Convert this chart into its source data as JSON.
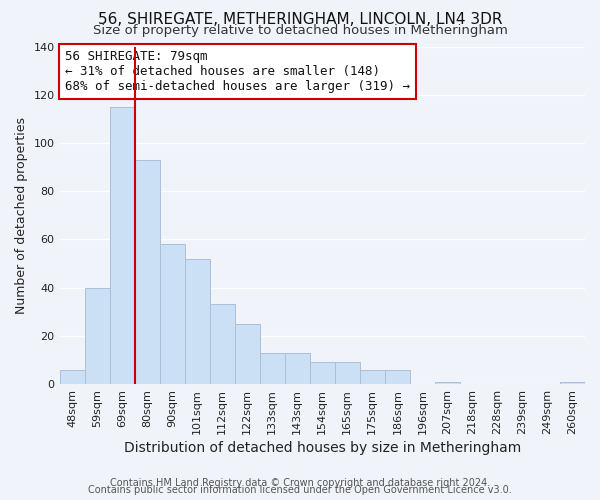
{
  "title": "56, SHIREGATE, METHERINGHAM, LINCOLN, LN4 3DR",
  "subtitle": "Size of property relative to detached houses in Metheringham",
  "xlabel": "Distribution of detached houses by size in Metheringham",
  "ylabel": "Number of detached properties",
  "bar_labels": [
    "48sqm",
    "59sqm",
    "69sqm",
    "80sqm",
    "90sqm",
    "101sqm",
    "112sqm",
    "122sqm",
    "133sqm",
    "143sqm",
    "154sqm",
    "165sqm",
    "175sqm",
    "186sqm",
    "196sqm",
    "207sqm",
    "218sqm",
    "228sqm",
    "239sqm",
    "249sqm",
    "260sqm"
  ],
  "bar_values": [
    6,
    40,
    115,
    93,
    58,
    52,
    33,
    25,
    13,
    13,
    9,
    9,
    6,
    6,
    0,
    1,
    0,
    0,
    0,
    0,
    1
  ],
  "bar_color": "#cce0f5",
  "bar_edge_color": "#aabfda",
  "vline_x_index": 2.5,
  "vline_color": "#cc0000",
  "annotation_text_line1": "56 SHIREGATE: 79sqm",
  "annotation_text_line2": "← 31% of detached houses are smaller (148)",
  "annotation_text_line3": "68% of semi-detached houses are larger (319) →",
  "annotation_box_facecolor": "#ffffff",
  "annotation_box_edgecolor": "#cc0000",
  "ylim": [
    0,
    140
  ],
  "yticks": [
    0,
    20,
    40,
    60,
    80,
    100,
    120,
    140
  ],
  "footer1": "Contains HM Land Registry data © Crown copyright and database right 2024.",
  "footer2": "Contains public sector information licensed under the Open Government Licence v3.0.",
  "bg_color": "#f0f4fa",
  "plot_bg_color": "#f0f4fa",
  "grid_color": "#ffffff",
  "title_fontsize": 11,
  "subtitle_fontsize": 9.5,
  "xlabel_fontsize": 10,
  "ylabel_fontsize": 9,
  "tick_fontsize": 8,
  "annotation_fontsize": 9,
  "footer_fontsize": 7
}
